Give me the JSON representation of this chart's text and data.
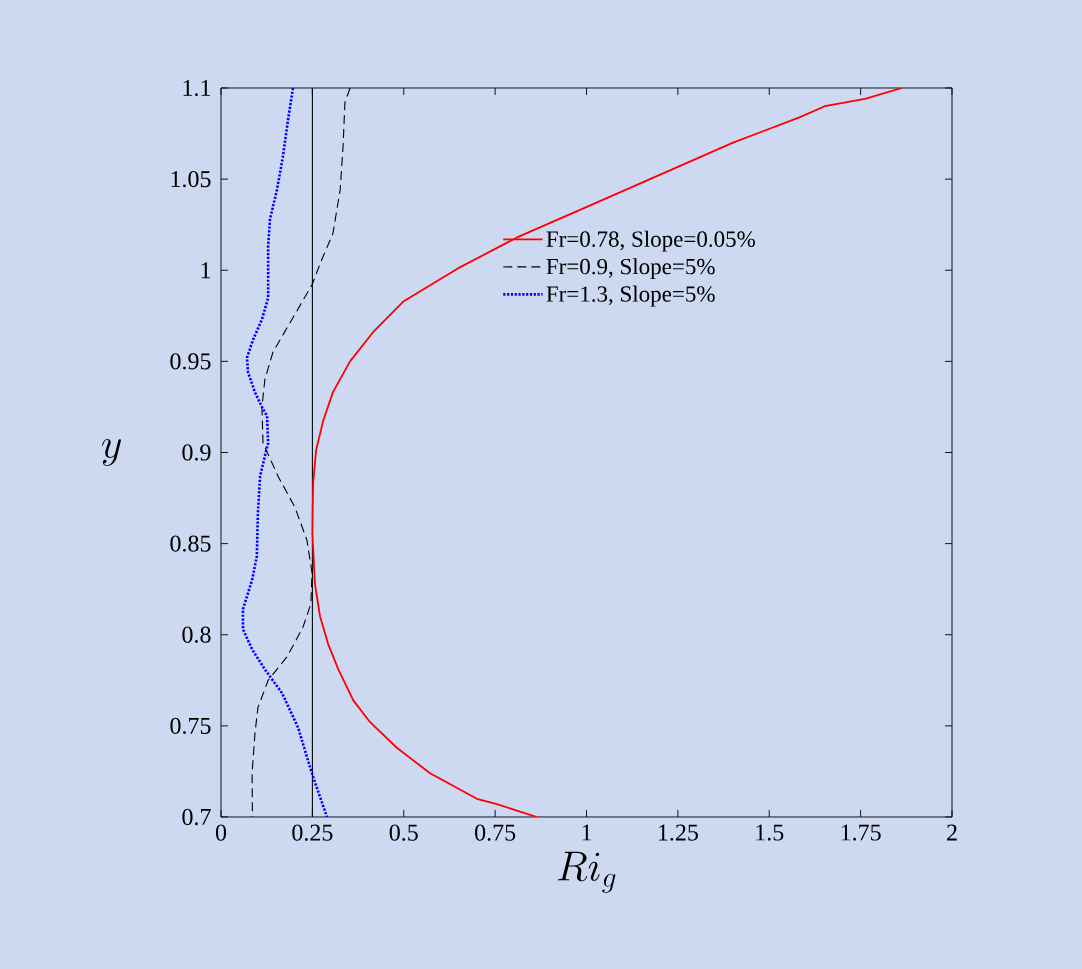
{
  "chart_data": {
    "type": "line",
    "xlabel": "Ri_g",
    "ylabel": "y",
    "xlim": [
      0,
      2
    ],
    "ylim": [
      0.7,
      1.1
    ],
    "xticks": [
      0,
      0.25,
      0.5,
      0.75,
      1,
      1.25,
      1.5,
      1.75,
      2
    ],
    "yticks": [
      0.7,
      0.75,
      0.8,
      0.85,
      0.9,
      0.95,
      1,
      1.05,
      1.1
    ],
    "grid": false,
    "legend": "top right",
    "marker": "none",
    "ref_lines": [
      {
        "axis": "x",
        "value": 0.25,
        "color": "#000000",
        "line_style": "solid"
      }
    ],
    "series": [
      {
        "name": "Fr=0.78, Slope=0.05%",
        "color": "#ff0000",
        "line_style": "solid",
        "x": [
          1.863,
          1.762,
          1.652,
          1.584,
          1.401,
          1.208,
          1.015,
          0.81,
          0.648,
          0.5,
          0.416,
          0.353,
          0.306,
          0.279,
          0.26,
          0.252,
          0.25,
          0.257,
          0.271,
          0.293,
          0.321,
          0.362,
          0.408,
          0.481,
          0.572,
          0.7,
          0.755,
          0.864
        ],
        "values": [
          1.1,
          1.094,
          1.09,
          1.084,
          1.07,
          1.053,
          1.036,
          1.018,
          1.001,
          0.983,
          0.966,
          0.95,
          0.933,
          0.917,
          0.901,
          0.883,
          0.856,
          0.828,
          0.81,
          0.795,
          0.781,
          0.764,
          0.752,
          0.738,
          0.724,
          0.71,
          0.707,
          0.7
        ]
      },
      {
        "name": "Fr=0.9, Slope=5%",
        "color": "#000000",
        "line_style": "dashed",
        "x": [
          0.353,
          0.339,
          0.334,
          0.326,
          0.306,
          0.276,
          0.249,
          0.194,
          0.142,
          0.12,
          0.112,
          0.115,
          0.12,
          0.156,
          0.202,
          0.235,
          0.249,
          0.246,
          0.224,
          0.181,
          0.129,
          0.101,
          0.093,
          0.085,
          0.086
        ],
        "values": [
          1.1,
          1.092,
          1.068,
          1.044,
          1.02,
          1.006,
          0.992,
          0.973,
          0.955,
          0.94,
          0.925,
          0.905,
          0.903,
          0.887,
          0.87,
          0.852,
          0.834,
          0.817,
          0.804,
          0.788,
          0.775,
          0.76,
          0.746,
          0.724,
          0.7
        ]
      },
      {
        "name": "Fr=1.3, Slope=5%",
        "color": "#0000ff",
        "line_style": "dotted",
        "x": [
          0.197,
          0.183,
          0.169,
          0.153,
          0.134,
          0.129,
          0.129,
          0.112,
          0.088,
          0.071,
          0.074,
          0.093,
          0.112,
          0.126,
          0.129,
          0.126,
          0.107,
          0.101,
          0.098,
          0.085,
          0.06,
          0.06,
          0.085,
          0.12,
          0.167,
          0.211,
          0.238,
          0.257,
          0.29
        ],
        "values": [
          1.1,
          1.082,
          1.062,
          1.044,
          1.028,
          1.013,
          0.985,
          0.973,
          0.962,
          0.952,
          0.944,
          0.933,
          0.925,
          0.92,
          0.905,
          0.903,
          0.887,
          0.867,
          0.843,
          0.83,
          0.814,
          0.803,
          0.792,
          0.781,
          0.768,
          0.749,
          0.731,
          0.719,
          0.7
        ]
      }
    ]
  }
}
